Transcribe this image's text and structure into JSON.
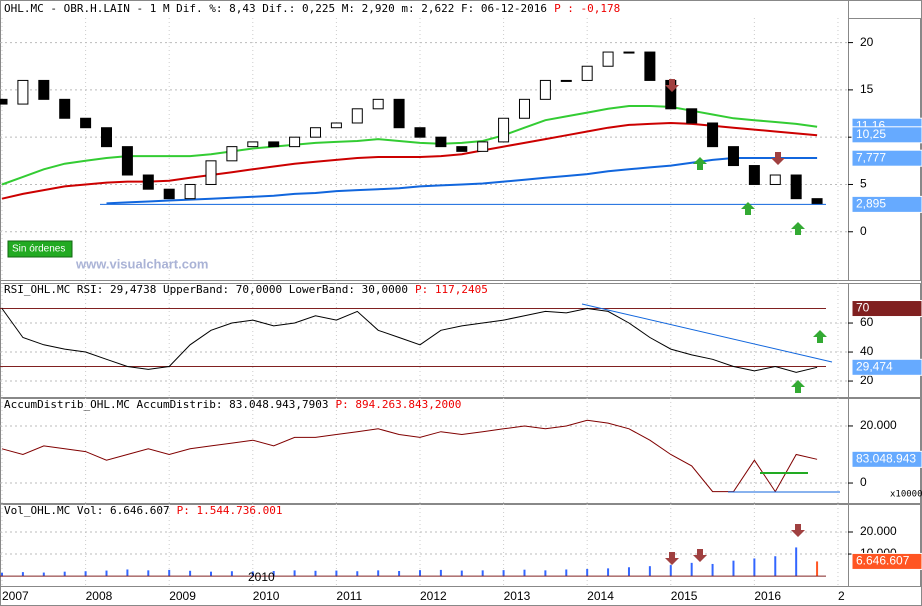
{
  "chart_data": [
    {
      "type": "candlestick",
      "title": "OHL.MC - OBR.H.LAIN -  1 M Dif. %: 8,43 Dif.: 0,225 M: 2,920 m: 2,622 F: 06-12-2016",
      "title_p": "P : -0,178",
      "x": [
        2007,
        2007.25,
        2007.5,
        2007.75,
        2008,
        2008.25,
        2008.5,
        2008.75,
        2009,
        2009.25,
        2009.5,
        2009.75,
        2010,
        2010.25,
        2010.5,
        2010.75,
        2011,
        2011.25,
        2011.5,
        2011.75,
        2012,
        2012.25,
        2012.5,
        2012.75,
        2013,
        2013.25,
        2013.5,
        2013.75,
        2014,
        2014.25,
        2014.5,
        2014.75,
        2015,
        2015.25,
        2015.5,
        2015.75,
        2016,
        2016.25,
        2016.5,
        2016.75
      ],
      "open": [
        14,
        13.5,
        16,
        14,
        12,
        11,
        9,
        6,
        4.5,
        3.5,
        5,
        7.5,
        9,
        9.5,
        9,
        10,
        11,
        11.5,
        13,
        14,
        11,
        10,
        9,
        8.5,
        9.5,
        12,
        14,
        16,
        16,
        17.5,
        19,
        19,
        16,
        13,
        11.5,
        9,
        7,
        5,
        6,
        3.5
      ],
      "close": [
        13.5,
        16,
        14,
        12,
        11,
        9,
        6,
        4.5,
        3.5,
        5,
        7.5,
        9,
        9.5,
        9,
        10,
        11,
        11.5,
        13,
        14,
        11,
        10,
        9,
        8.5,
        9.5,
        12,
        14,
        16,
        16,
        17.5,
        19,
        19,
        16,
        13,
        11.5,
        9,
        7,
        5,
        6,
        3.5,
        2.92
      ],
      "lines": [
        {
          "color": "#33cc33",
          "values": [
            5,
            5.8,
            6.6,
            7.2,
            7.5,
            7.8,
            8,
            8,
            8,
            8,
            8.2,
            8.5,
            8.8,
            9,
            9.2,
            9.4,
            9.5,
            9.6,
            9.8,
            9.6,
            9.4,
            9.3,
            9.4,
            9.6,
            10.2,
            11,
            11.8,
            12.2,
            12.6,
            13,
            13.3,
            13.3,
            13.2,
            12.8,
            12.4,
            12,
            11.8,
            11.6,
            11.4,
            11.1
          ]
        },
        {
          "color": "#cc0000",
          "values": [
            3.5,
            4,
            4.4,
            4.8,
            5,
            5.2,
            5.3,
            5.3,
            5.4,
            5.7,
            6,
            6.3,
            6.6,
            6.9,
            7.2,
            7.4,
            7.6,
            7.8,
            7.9,
            7.9,
            7.9,
            8,
            8.2,
            8.6,
            9,
            9.4,
            9.8,
            10.2,
            10.6,
            11,
            11.3,
            11.4,
            11.5,
            11.4,
            11.2,
            11,
            10.8,
            10.6,
            10.4,
            10.2
          ]
        },
        {
          "color": "#1166dd",
          "values": [
            null,
            null,
            null,
            null,
            null,
            3,
            3.1,
            3.2,
            3.3,
            3.4,
            3.5,
            3.6,
            3.7,
            3.8,
            4,
            4.1,
            4.3,
            4.4,
            4.5,
            4.6,
            4.8,
            4.9,
            5,
            5.1,
            5.3,
            5.5,
            5.7,
            5.9,
            6.1,
            6.4,
            6.6,
            6.8,
            7,
            7.3,
            7.6,
            7.8,
            7.8,
            7.8,
            7.8,
            7.8
          ]
        }
      ],
      "ylim": [
        -5.1,
        22.6
      ],
      "yticks": [
        20,
        15,
        10,
        5,
        0
      ],
      "price_labels": [
        {
          "value": 11.16,
          "label": "11,16",
          "color": "#66aaff"
        },
        {
          "value": 10.25,
          "label": "10,25",
          "color": "#66aaff"
        },
        {
          "value": 7.777,
          "label": "7,777",
          "color": "#66aaff"
        },
        {
          "value": 2.895,
          "label": "2,895",
          "color": "#66aaff"
        }
      ],
      "xlim": [
        2006.976,
        2017.12
      ],
      "xticks": [
        2007,
        2008,
        2009,
        2010,
        2011,
        2012,
        2013,
        2014,
        2015,
        2016,
        {
          "value": 2017,
          "label": "2"
        }
      ],
      "button": "Sin órdenes",
      "watermark": "www.visualchart.com"
    },
    {
      "type": "line",
      "title": "RSI_OHL.MC RSI: 29,4738 UpperBand: 70,0000 LowerBand: 30,0000",
      "title_p": "P: 117,2405",
      "x": [
        2007,
        2007.25,
        2007.5,
        2007.75,
        2008,
        2008.25,
        2008.5,
        2008.75,
        2009,
        2009.25,
        2009.5,
        2009.75,
        2010,
        2010.25,
        2010.5,
        2010.75,
        2011,
        2011.25,
        2011.5,
        2011.75,
        2012,
        2012.25,
        2012.5,
        2012.75,
        2013,
        2013.25,
        2013.5,
        2013.75,
        2014,
        2014.25,
        2014.5,
        2014.75,
        2015,
        2015.25,
        2015.5,
        2015.75,
        2016,
        2016.25,
        2016.5,
        2016.75
      ],
      "values": [
        70,
        50,
        45,
        42,
        40,
        35,
        30,
        28,
        30,
        45,
        55,
        60,
        62,
        58,
        60,
        65,
        62,
        68,
        55,
        50,
        45,
        55,
        58,
        60,
        62,
        65,
        68,
        67,
        70,
        68,
        60,
        50,
        42,
        38,
        35,
        30,
        27,
        30,
        26,
        29.4738
      ],
      "color": "#000000",
      "bands": [
        70,
        30
      ],
      "ylim": [
        9,
        87.6
      ],
      "yticks": [
        20,
        40,
        60
      ],
      "price_labels": [
        {
          "value": 70,
          "label": "70",
          "color": "#802020"
        },
        {
          "value": 29.4738,
          "label": "29,474",
          "color": "#66aaff"
        }
      ]
    },
    {
      "type": "line",
      "title": "AccumDistrib_OHL.MC AccumDistrib: 83.048.943,7903",
      "title_p": "P: 894.263.843,2000",
      "x": [
        2007,
        2007.25,
        2007.5,
        2007.75,
        2008,
        2008.25,
        2008.5,
        2008.75,
        2009,
        2009.25,
        2009.5,
        2009.75,
        2010,
        2010.25,
        2010.5,
        2010.75,
        2011,
        2011.25,
        2011.5,
        2011.75,
        2012,
        2012.25,
        2012.5,
        2012.75,
        2013,
        2013.25,
        2013.5,
        2013.75,
        2014,
        2014.25,
        2014.5,
        2014.75,
        2015,
        2015.25,
        2015.5,
        2015.75,
        2016,
        2016.25,
        2016.5,
        2016.75
      ],
      "values": [
        12000,
        10000,
        13000,
        12000,
        11000,
        8000,
        10000,
        12000,
        10000,
        12000,
        13000,
        14000,
        15000,
        13000,
        16000,
        16000,
        17000,
        18000,
        19000,
        17000,
        16000,
        18000,
        17000,
        18000,
        19000,
        20000,
        19000,
        20000,
        22000,
        21000,
        19000,
        15000,
        10000,
        6000,
        -3000,
        -3000,
        8000,
        -3000,
        10000,
        8304.8943
      ],
      "color": "#800000",
      "ylim": [
        -7000,
        29800
      ],
      "yticks": [
        {
          "value": 20000,
          "label": "20.000"
        },
        0
      ],
      "multiplier": "x10000",
      "price_labels": [
        {
          "value": 8304.8943,
          "label": "83.048.943",
          "color": "#66aaff"
        }
      ]
    },
    {
      "type": "bar",
      "title": "Vol_OHL.MC Vol: 6.646.607",
      "title_p": "P: 1.544.736.001",
      "x": [
        2007,
        2007.25,
        2007.5,
        2007.75,
        2008,
        2008.25,
        2008.5,
        2008.75,
        2009,
        2009.25,
        2009.5,
        2009.75,
        2010,
        2010.25,
        2010.5,
        2010.75,
        2011,
        2011.25,
        2011.5,
        2011.75,
        2012,
        2012.25,
        2012.5,
        2012.75,
        2013,
        2013.25,
        2013.5,
        2013.75,
        2014,
        2014.25,
        2014.5,
        2014.75,
        2015,
        2015.25,
        2015.5,
        2015.75,
        2016,
        2016.25,
        2016.5,
        2016.75
      ],
      "values": [
        1500,
        1800,
        1600,
        2000,
        2200,
        2500,
        3000,
        2600,
        2800,
        2400,
        2000,
        2200,
        2100,
        2300,
        2600,
        2400,
        2500,
        2200,
        2600,
        2300,
        2700,
        2800,
        2500,
        2600,
        2700,
        2900,
        2600,
        3000,
        3200,
        3500,
        4000,
        4500,
        5000,
        6000,
        5500,
        7000,
        8000,
        9000,
        13000,
        6646.607
      ],
      "color": "#3366ff",
      "ylim": [
        -4500,
        32700
      ],
      "yticks": [
        {
          "value": 10000,
          "label": "10.000"
        },
        {
          "value": 20000,
          "label": "20.000"
        }
      ],
      "price_labels": [
        {
          "value": 6646.607,
          "label": "6.646.607",
          "color": "#ff5522"
        }
      ],
      "annotation": "2010"
    }
  ]
}
